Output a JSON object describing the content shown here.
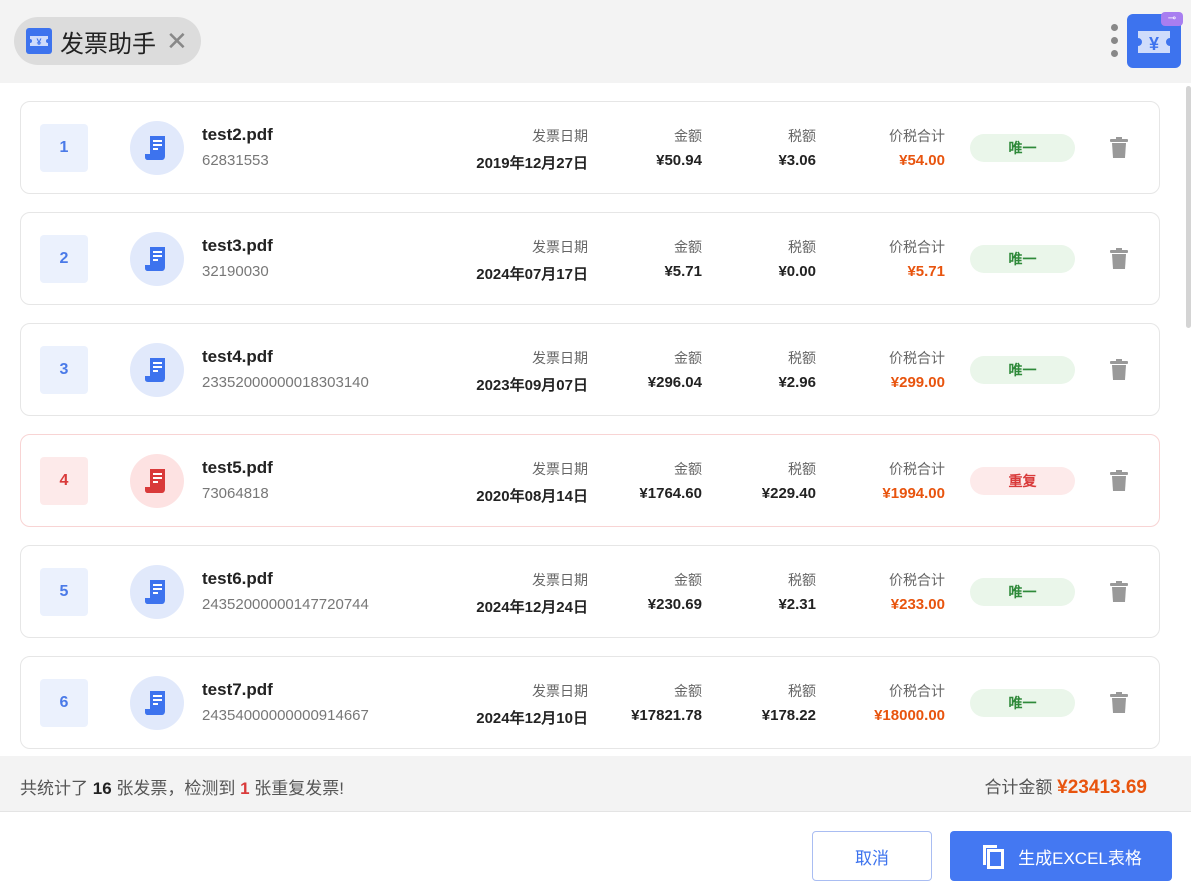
{
  "tab": {
    "title": "发票助手",
    "close_icon": "close-icon"
  },
  "labels": {
    "date": "发票日期",
    "amount": "金额",
    "tax": "税额",
    "total": "价税合计"
  },
  "colors": {
    "accent": "#4478f2",
    "total": "#e8540e",
    "duplicate": "#d93a3a",
    "unique": "#2f8a3a"
  },
  "invoices": [
    {
      "index": "1",
      "file": "test2.pdf",
      "number": "62831553",
      "date": "2019年12月27日",
      "amount": "¥50.94",
      "tax": "¥3.06",
      "total": "¥54.00",
      "status": "唯一",
      "duplicate": false
    },
    {
      "index": "2",
      "file": "test3.pdf",
      "number": "32190030",
      "date": "2024年07月17日",
      "amount": "¥5.71",
      "tax": "¥0.00",
      "total": "¥5.71",
      "status": "唯一",
      "duplicate": false
    },
    {
      "index": "3",
      "file": "test4.pdf",
      "number": "23352000000018303140",
      "date": "2023年09月07日",
      "amount": "¥296.04",
      "tax": "¥2.96",
      "total": "¥299.00",
      "status": "唯一",
      "duplicate": false
    },
    {
      "index": "4",
      "file": "test5.pdf",
      "number": "73064818",
      "date": "2020年08月14日",
      "amount": "¥1764.60",
      "tax": "¥229.40",
      "total": "¥1994.00",
      "status": "重复",
      "duplicate": true
    },
    {
      "index": "5",
      "file": "test6.pdf",
      "number": "24352000000147720744",
      "date": "2024年12月24日",
      "amount": "¥230.69",
      "tax": "¥2.31",
      "total": "¥233.00",
      "status": "唯一",
      "duplicate": false
    },
    {
      "index": "6",
      "file": "test7.pdf",
      "number": "24354000000000914667",
      "date": "2024年12月10日",
      "amount": "¥17821.78",
      "tax": "¥178.22",
      "total": "¥18000.00",
      "status": "唯一",
      "duplicate": false
    }
  ],
  "summary": {
    "p1": "共统计了 ",
    "count": "16",
    "p2": " 张发票，检测到 ",
    "dup_count": "1",
    "p3": " 张重复发票!",
    "total_label": "合计金额 ",
    "total_value": "¥23413.69"
  },
  "buttons": {
    "cancel": "取消",
    "generate": "生成EXCEL表格"
  }
}
